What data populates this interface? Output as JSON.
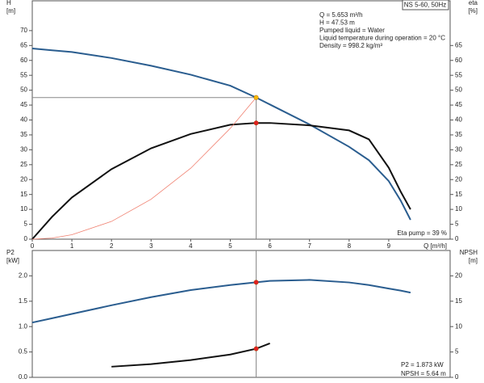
{
  "chart_data": [
    {
      "type": "line",
      "title": "NS 5-60, 50Hz",
      "annotations": [
        "Q = 5.653 m³/h",
        "H = 47.53 m",
        "Pumped liquid = Water",
        "Liquid temperature during operation = 20 °C",
        "Density = 998.2 kg/m³"
      ],
      "footnote": "Eta pump = 39 %",
      "ylabel": [
        "H",
        "[m]"
      ],
      "y2label": [
        "eta",
        "[%]"
      ],
      "xlabel": "Q [m³/h]",
      "x": [
        0,
        0.5,
        1,
        2,
        3,
        4,
        5,
        5.653,
        6,
        7,
        8,
        8.5,
        9,
        9.3,
        9.55
      ],
      "series": [
        {
          "color": "#2a5d8f",
          "values": [
            64,
            63.4,
            62.8,
            60.8,
            58.2,
            55.2,
            51.5,
            47.53,
            45.2,
            38.5,
            31,
            26.5,
            19.5,
            13,
            6.5
          ]
        },
        {
          "color": "#111111",
          "axis": "y2",
          "values": [
            0,
            7.5,
            14,
            23.5,
            30.5,
            35.3,
            38.4,
            39,
            39,
            38.2,
            36.5,
            33.5,
            24,
            16,
            10
          ]
        },
        {
          "color": "#f08070",
          "values": [
            0,
            0.37,
            1.49,
            5.95,
            13.4,
            23.8,
            37.2,
            47.53,
            null,
            null,
            null,
            null,
            null,
            null,
            null
          ]
        }
      ],
      "operating_point": {
        "x": 5.653,
        "marker_colors": [
          "#f5b800",
          "#e02020",
          null
        ]
      },
      "xlim": [
        0,
        10.55
      ],
      "xticks": [
        0,
        1,
        2,
        3,
        4,
        5,
        6,
        7,
        8,
        9
      ],
      "ylim": [
        0,
        80
      ],
      "yticks": [
        0,
        5,
        10,
        15,
        20,
        25,
        30,
        35,
        40,
        45,
        50,
        55,
        60,
        65,
        70
      ],
      "y2lim": [
        0,
        80
      ],
      "y2ticks": [
        0,
        5,
        10,
        15,
        20,
        25,
        30,
        35,
        40,
        45,
        50,
        55,
        60,
        65
      ]
    },
    {
      "type": "line",
      "annotations": [
        "P2 = 1.873 kW",
        "NPSH = 5.64 m"
      ],
      "ylabel": [
        "P2",
        "[kW]"
      ],
      "y2label": [
        "NPSH",
        "[m]"
      ],
      "x": [
        0,
        0.5,
        1,
        2,
        3,
        4,
        5,
        5.653,
        6,
        7,
        8,
        8.5,
        9,
        9.3,
        9.55
      ],
      "series": [
        {
          "color": "#2a5d8f",
          "values": [
            1.08,
            1.165,
            1.25,
            1.42,
            1.58,
            1.72,
            1.82,
            1.873,
            1.9,
            1.92,
            1.87,
            1.82,
            1.75,
            1.71,
            1.67
          ]
        },
        {
          "color": "#111111",
          "axis": "y2",
          "values": [
            null,
            null,
            null,
            2.1,
            2.6,
            3.4,
            4.5,
            5.64,
            6.7,
            null,
            null,
            null,
            null,
            null,
            null
          ]
        }
      ],
      "operating_point": {
        "x": 5.653,
        "marker_colors": [
          "#e02020",
          "#e02020"
        ]
      },
      "xlim": [
        0,
        10.55
      ],
      "ylim": [
        0,
        2.5
      ],
      "yticks": [
        {
          "value": 0,
          "label": "0.0"
        },
        0.5,
        {
          "value": 1,
          "label": "1.0"
        },
        1.5,
        {
          "value": 2,
          "label": "2.0"
        }
      ],
      "y2lim": [
        0,
        25
      ],
      "y2ticks": [
        0,
        5,
        10,
        15,
        20
      ]
    }
  ]
}
